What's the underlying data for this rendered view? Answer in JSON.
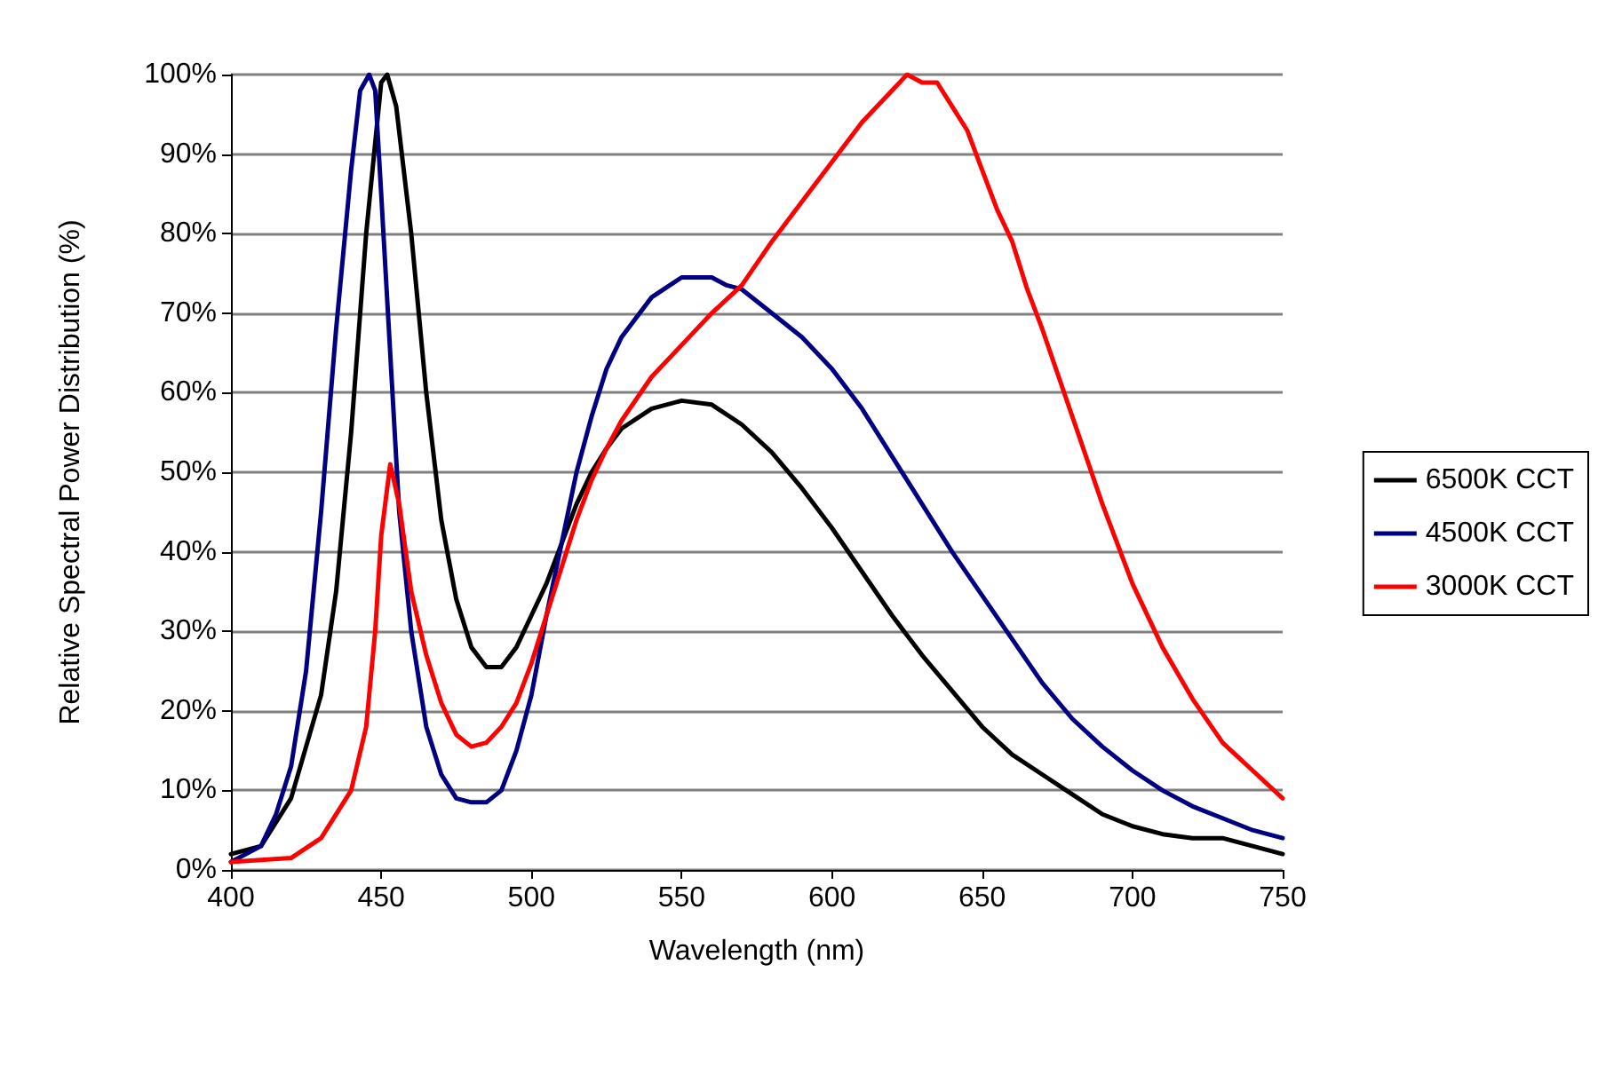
{
  "chart_data": {
    "type": "line",
    "xlabel": "Wavelength (nm)",
    "ylabel": "Relative Spectral Power Distribution (%)",
    "xlim": [
      400,
      750
    ],
    "xticks": [
      400,
      450,
      500,
      550,
      600,
      650,
      700,
      750
    ],
    "ylim": [
      0,
      100
    ],
    "yticks": [
      {
        "value": 0,
        "label": "0%"
      },
      {
        "value": 10,
        "label": "10%"
      },
      {
        "value": 20,
        "label": "20%"
      },
      {
        "value": 30,
        "label": "30%"
      },
      {
        "value": 40,
        "label": "40%"
      },
      {
        "value": 50,
        "label": "50%"
      },
      {
        "value": 60,
        "label": "60%"
      },
      {
        "value": 70,
        "label": "70%"
      },
      {
        "value": 80,
        "label": "80%"
      },
      {
        "value": 90,
        "label": "90%"
      },
      {
        "value": 100,
        "label": "100%"
      }
    ],
    "grid": "y",
    "legend": "right",
    "marker": "none",
    "line_style": "solid",
    "series": [
      {
        "name": "6500K CCT",
        "color": "#000000",
        "x": [
          400,
          410,
          420,
          430,
          435,
          440,
          445,
          450,
          452,
          455,
          460,
          465,
          470,
          475,
          480,
          485,
          490,
          495,
          500,
          505,
          510,
          515,
          520,
          525,
          530,
          540,
          550,
          560,
          570,
          580,
          590,
          600,
          610,
          620,
          630,
          640,
          650,
          660,
          670,
          680,
          690,
          700,
          710,
          720,
          730,
          740,
          750
        ],
        "values": [
          2,
          3,
          9,
          22,
          35,
          55,
          80,
          99,
          100,
          96,
          80,
          60,
          44,
          34,
          28,
          25.5,
          25.5,
          28,
          32,
          36,
          41,
          46,
          50,
          53,
          55.5,
          58,
          59,
          58.5,
          56,
          52.5,
          48,
          43,
          37.5,
          32,
          27,
          22.5,
          18,
          14.5,
          12,
          9.5,
          7,
          5.5,
          4.5,
          4,
          4,
          3,
          2
        ]
      },
      {
        "name": "4500K CCT",
        "color": "#000080",
        "x": [
          400,
          410,
          415,
          420,
          425,
          430,
          435,
          440,
          443,
          446,
          448,
          450,
          453,
          456,
          460,
          465,
          470,
          475,
          480,
          485,
          490,
          495,
          500,
          505,
          510,
          515,
          520,
          525,
          530,
          540,
          550,
          560,
          565,
          570,
          580,
          590,
          600,
          610,
          620,
          630,
          640,
          650,
          660,
          670,
          680,
          690,
          700,
          710,
          720,
          730,
          740,
          750
        ],
        "values": [
          1,
          3,
          7,
          13,
          25,
          45,
          68,
          88,
          98,
          100,
          98,
          85,
          65,
          45,
          30,
          18,
          12,
          9,
          8.5,
          8.5,
          10,
          15,
          22,
          32,
          41,
          50,
          57,
          63,
          67,
          72,
          74.5,
          74.5,
          73.5,
          73,
          70,
          67,
          63,
          58,
          52,
          46,
          40,
          34.5,
          29,
          23.5,
          19,
          15.5,
          12.5,
          10,
          8,
          6.5,
          5,
          4
        ]
      },
      {
        "name": "3000K CCT",
        "color": "#ff0000",
        "x": [
          400,
          420,
          430,
          440,
          445,
          448,
          450,
          453,
          456,
          460,
          465,
          470,
          475,
          480,
          485,
          490,
          495,
          500,
          505,
          510,
          515,
          520,
          525,
          530,
          540,
          550,
          560,
          570,
          580,
          590,
          600,
          610,
          620,
          625,
          630,
          635,
          640,
          645,
          650,
          655,
          660,
          665,
          670,
          680,
          690,
          700,
          710,
          720,
          730,
          740,
          750
        ],
        "values": [
          1,
          1.5,
          4,
          10,
          18,
          30,
          42,
          51,
          46,
          35,
          27,
          21,
          17,
          15.5,
          16,
          18,
          21,
          26,
          32,
          38,
          44,
          49,
          53,
          56.5,
          62,
          66,
          70,
          73.5,
          79,
          84,
          89,
          94,
          98,
          100,
          99,
          99,
          96,
          93,
          88,
          83,
          79,
          73,
          68,
          57,
          46,
          36,
          28,
          21.5,
          16,
          12.5,
          9
        ]
      }
    ]
  }
}
